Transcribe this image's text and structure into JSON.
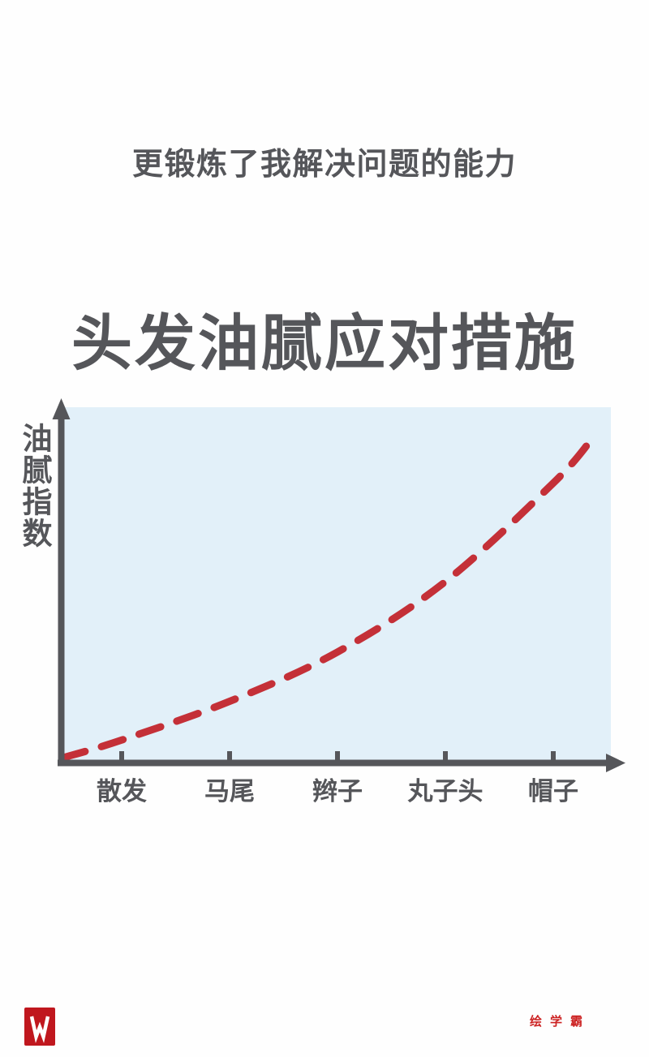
{
  "page": {
    "background": "#fefefe"
  },
  "header": {
    "subtitle": "更锻炼了我解决问题的能力",
    "text_color": "#55565a"
  },
  "chart_data": {
    "type": "line",
    "line_style": "dashed",
    "title": "头发油腻应对措施",
    "ylabel": "油腻指数",
    "xlabel": "",
    "categories": [
      "散发",
      "马尾",
      "辫子",
      "丸子头",
      "帽子"
    ],
    "values": [
      5,
      16,
      30,
      50,
      78
    ],
    "curve_origin_value": 0,
    "curve_end_value": 90,
    "ylim": [
      0,
      100
    ],
    "grid": false,
    "legend": false,
    "colors": {
      "line": "#c43038",
      "plot_background": "#e2f0f9",
      "axis": "#55565a"
    }
  },
  "footer": {
    "logo_letter": "W",
    "logo_color": "#c0171e",
    "brand": "绘学霸",
    "brand_color": "#cc2222"
  }
}
